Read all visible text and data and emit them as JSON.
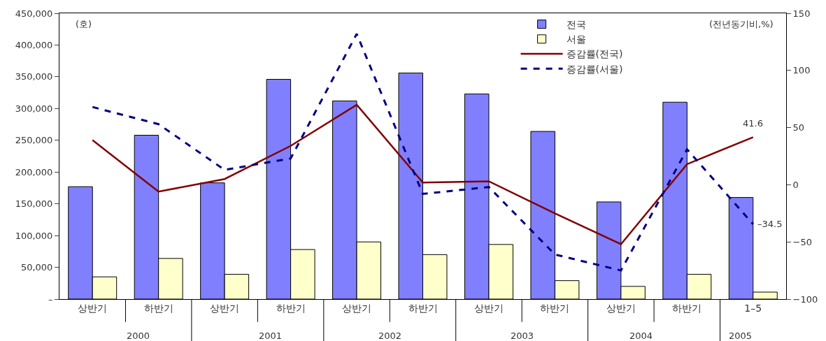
{
  "chart_data": {
    "type": "bar",
    "categories": [
      "상반기",
      "하반기",
      "상반기",
      "하반기",
      "상반기",
      "하반기",
      "상반기",
      "하반기",
      "상반기",
      "하반기",
      "1–5"
    ],
    "series": [
      {
        "name": "전국",
        "color": "#8080ff",
        "values": [
          177000,
          258000,
          183000,
          346000,
          312000,
          356000,
          323000,
          264000,
          153000,
          310000,
          160000
        ]
      },
      {
        "name": "서울",
        "color": "#ffffcc",
        "values": [
          35000,
          64000,
          39000,
          78000,
          90000,
          70000,
          86000,
          29000,
          20000,
          39000,
          11000
        ]
      },
      {
        "name": "증감률(전국)",
        "type": "line",
        "axis": "y2",
        "color": "#800000",
        "line_style": "solid",
        "values": [
          39,
          -6,
          5,
          34,
          70,
          2,
          3,
          -25,
          -52,
          18,
          41.6
        ],
        "value_labels": [
          null,
          null,
          null,
          null,
          null,
          null,
          null,
          null,
          null,
          null,
          "41.6"
        ]
      },
      {
        "name": "증감률(서울)",
        "type": "line",
        "axis": "y2",
        "color": "#000080",
        "line_style": "dashed",
        "values": [
          68,
          53,
          13,
          23,
          132,
          -8,
          -2,
          -61,
          -75,
          31,
          -34.5
        ],
        "value_labels": [
          null,
          null,
          null,
          null,
          null,
          null,
          null,
          null,
          null,
          null,
          "–34.5"
        ]
      }
    ],
    "ylim": [
      0,
      450000
    ],
    "yticks": [
      {
        "value": 0,
        "label": "–"
      },
      {
        "value": 50000,
        "label": "50,000"
      },
      {
        "value": 100000,
        "label": "100,000"
      },
      {
        "value": 150000,
        "label": "150,000"
      },
      {
        "value": 200000,
        "label": "200,000"
      },
      {
        "value": 250000,
        "label": "250,000"
      },
      {
        "value": 300000,
        "label": "300,000"
      },
      {
        "value": 350000,
        "label": "350,000"
      },
      {
        "value": 400000,
        "label": "400,000"
      },
      {
        "value": 450000,
        "label": "450,000"
      }
    ],
    "y2lim": [
      -100,
      150
    ],
    "y2ticks": [
      {
        "value": -100,
        "label": "−100"
      },
      {
        "value": -50,
        "label": "−50"
      },
      0,
      50,
      100,
      150
    ],
    "ylabel": "(호)",
    "y2label": "(전년동기비,%)",
    "annotations": [
      "2000",
      "2001",
      "2002",
      "2003",
      "2004",
      "2005"
    ],
    "legend": "top",
    "marker": "none"
  }
}
